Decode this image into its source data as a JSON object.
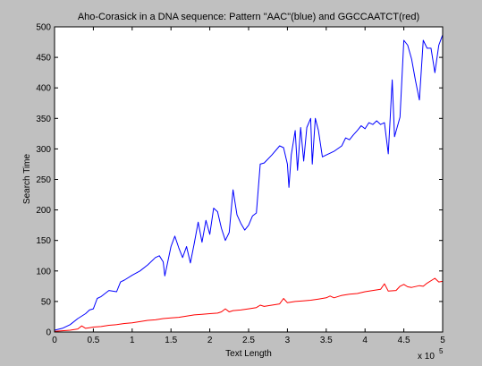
{
  "chart_data": {
    "type": "line",
    "title": "Aho-Corasick in a DNA sequence: Pattern \"AAC\"(blue) and GGCCAATCT(red)",
    "xlabel": "Text Length",
    "ylabel": "Search Time",
    "x_exponent_label": "x 10",
    "x_exponent": "5",
    "xlim": [
      0,
      500000
    ],
    "ylim": [
      0,
      500
    ],
    "xticks": [
      0,
      50000,
      100000,
      150000,
      200000,
      250000,
      300000,
      350000,
      400000,
      450000,
      500000
    ],
    "xtick_labels": [
      "0",
      "0.5",
      "1",
      "1.5",
      "2",
      "2.5",
      "3",
      "3.5",
      "4",
      "4.5",
      "5"
    ],
    "yticks": [
      0,
      50,
      100,
      150,
      200,
      250,
      300,
      350,
      400,
      450,
      500
    ],
    "ytick_labels": [
      "0",
      "50",
      "100",
      "150",
      "200",
      "250",
      "300",
      "350",
      "400",
      "450",
      "500"
    ],
    "grid": false,
    "series": [
      {
        "color": "#0000ff",
        "points": [
          [
            0,
            3
          ],
          [
            10000,
            6
          ],
          [
            20000,
            12
          ],
          [
            30000,
            22
          ],
          [
            40000,
            30
          ],
          [
            45000,
            36
          ],
          [
            50000,
            38
          ],
          [
            55000,
            55
          ],
          [
            60000,
            58
          ],
          [
            70000,
            68
          ],
          [
            80000,
            66
          ],
          [
            85000,
            82
          ],
          [
            90000,
            85
          ],
          [
            100000,
            93
          ],
          [
            110000,
            100
          ],
          [
            120000,
            110
          ],
          [
            130000,
            122
          ],
          [
            135000,
            125
          ],
          [
            140000,
            115
          ],
          [
            142000,
            92
          ],
          [
            150000,
            140
          ],
          [
            155000,
            157
          ],
          [
            160000,
            138
          ],
          [
            165000,
            122
          ],
          [
            170000,
            140
          ],
          [
            175000,
            113
          ],
          [
            180000,
            145
          ],
          [
            185000,
            180
          ],
          [
            190000,
            147
          ],
          [
            195000,
            183
          ],
          [
            200000,
            160
          ],
          [
            205000,
            203
          ],
          [
            210000,
            197
          ],
          [
            215000,
            170
          ],
          [
            220000,
            150
          ],
          [
            225000,
            163
          ],
          [
            230000,
            233
          ],
          [
            235000,
            192
          ],
          [
            240000,
            178
          ],
          [
            245000,
            167
          ],
          [
            250000,
            175
          ],
          [
            255000,
            190
          ],
          [
            260000,
            195
          ],
          [
            265000,
            275
          ],
          [
            270000,
            277
          ],
          [
            280000,
            290
          ],
          [
            290000,
            305
          ],
          [
            295000,
            302
          ],
          [
            300000,
            275
          ],
          [
            302000,
            237
          ],
          [
            305000,
            290
          ],
          [
            310000,
            330
          ],
          [
            313000,
            265
          ],
          [
            317000,
            335
          ],
          [
            321000,
            280
          ],
          [
            325000,
            335
          ],
          [
            330000,
            350
          ],
          [
            332000,
            275
          ],
          [
            336000,
            350
          ],
          [
            340000,
            330
          ],
          [
            345000,
            287
          ],
          [
            350000,
            290
          ],
          [
            355000,
            293
          ],
          [
            360000,
            296
          ],
          [
            370000,
            305
          ],
          [
            375000,
            318
          ],
          [
            380000,
            315
          ],
          [
            385000,
            323
          ],
          [
            390000,
            330
          ],
          [
            395000,
            338
          ],
          [
            400000,
            333
          ],
          [
            405000,
            343
          ],
          [
            410000,
            340
          ],
          [
            415000,
            346
          ],
          [
            420000,
            340
          ],
          [
            425000,
            343
          ],
          [
            430000,
            292
          ],
          [
            435000,
            413
          ],
          [
            438000,
            320
          ],
          [
            445000,
            352
          ],
          [
            450000,
            478
          ],
          [
            455000,
            470
          ],
          [
            460000,
            447
          ],
          [
            465000,
            412
          ],
          [
            470000,
            380
          ],
          [
            475000,
            478
          ],
          [
            480000,
            465
          ],
          [
            485000,
            465
          ],
          [
            490000,
            425
          ],
          [
            495000,
            470
          ],
          [
            500000,
            487
          ]
        ]
      },
      {
        "color": "#ff0000",
        "points": [
          [
            0,
            1
          ],
          [
            10000,
            2
          ],
          [
            20000,
            3
          ],
          [
            30000,
            5
          ],
          [
            35000,
            10
          ],
          [
            40000,
            6
          ],
          [
            45000,
            7
          ],
          [
            50000,
            8
          ],
          [
            60000,
            9
          ],
          [
            70000,
            11
          ],
          [
            80000,
            12
          ],
          [
            90000,
            14
          ],
          [
            100000,
            15
          ],
          [
            110000,
            17
          ],
          [
            120000,
            19
          ],
          [
            130000,
            20
          ],
          [
            140000,
            22
          ],
          [
            150000,
            23
          ],
          [
            160000,
            24
          ],
          [
            170000,
            26
          ],
          [
            180000,
            28
          ],
          [
            190000,
            29
          ],
          [
            200000,
            30
          ],
          [
            210000,
            31
          ],
          [
            215000,
            33
          ],
          [
            220000,
            38
          ],
          [
            225000,
            33
          ],
          [
            230000,
            35
          ],
          [
            240000,
            36
          ],
          [
            250000,
            38
          ],
          [
            260000,
            40
          ],
          [
            265000,
            44
          ],
          [
            270000,
            42
          ],
          [
            280000,
            44
          ],
          [
            290000,
            46
          ],
          [
            295000,
            55
          ],
          [
            300000,
            48
          ],
          [
            310000,
            50
          ],
          [
            320000,
            51
          ],
          [
            330000,
            52
          ],
          [
            340000,
            54
          ],
          [
            350000,
            56
          ],
          [
            355000,
            59
          ],
          [
            360000,
            56
          ],
          [
            370000,
            60
          ],
          [
            380000,
            62
          ],
          [
            390000,
            63
          ],
          [
            400000,
            66
          ],
          [
            410000,
            68
          ],
          [
            420000,
            70
          ],
          [
            425000,
            79
          ],
          [
            430000,
            67
          ],
          [
            440000,
            68
          ],
          [
            445000,
            75
          ],
          [
            450000,
            78
          ],
          [
            455000,
            74
          ],
          [
            460000,
            73
          ],
          [
            470000,
            76
          ],
          [
            475000,
            75
          ],
          [
            480000,
            80
          ],
          [
            490000,
            88
          ],
          [
            495000,
            82
          ],
          [
            500000,
            83
          ]
        ]
      }
    ]
  }
}
